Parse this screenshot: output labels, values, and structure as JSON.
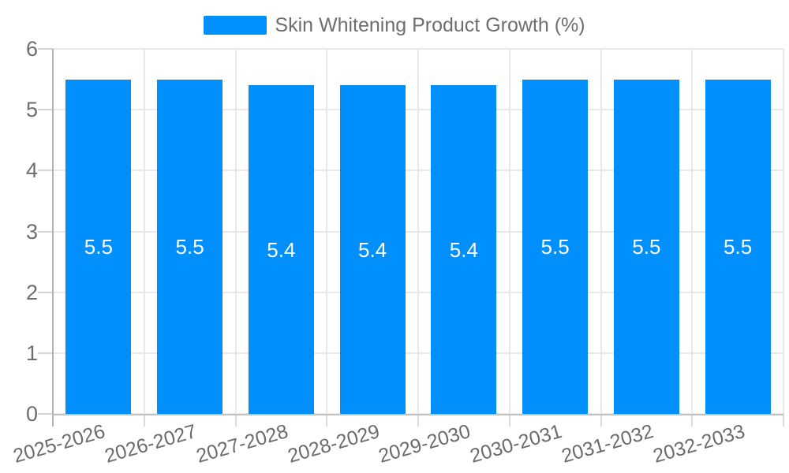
{
  "legend": {
    "label": "Skin Whitening Product Growth (%)",
    "swatch_color": "#008FFB"
  },
  "chart_data": {
    "type": "bar",
    "title": "Skin Whitening Product Growth (%)",
    "series": [
      {
        "name": "Skin Whitening Product Growth (%)",
        "values": [
          5.5,
          5.5,
          5.4,
          5.4,
          5.4,
          5.5,
          5.5,
          5.5
        ]
      }
    ],
    "categories": [
      "2025-2026",
      "2026-2027",
      "2027-2028",
      "2028-2029",
      "2029-2030",
      "2030-2031",
      "2031-2032",
      "2032-2033"
    ],
    "data_labels": [
      "5.5",
      "5.5",
      "5.4",
      "5.4",
      "5.4",
      "5.5",
      "5.5",
      "5.5"
    ],
    "xlabel": "",
    "ylabel": "",
    "ylim": [
      0,
      6
    ],
    "yticks": [
      "0",
      "1",
      "2",
      "3",
      "4",
      "5",
      "6"
    ],
    "grid": "on",
    "legend_position": "top",
    "x_label_rotation_deg": -16
  },
  "colors": {
    "bar": "#008FFB",
    "data_label": "#ffffff",
    "grid": "#e8e8e8",
    "axis_y_line": "#b3b3b3",
    "axis_x_line": "#c2c2c2",
    "tick_text": "#6e6e6e",
    "background": "#ffffff"
  }
}
